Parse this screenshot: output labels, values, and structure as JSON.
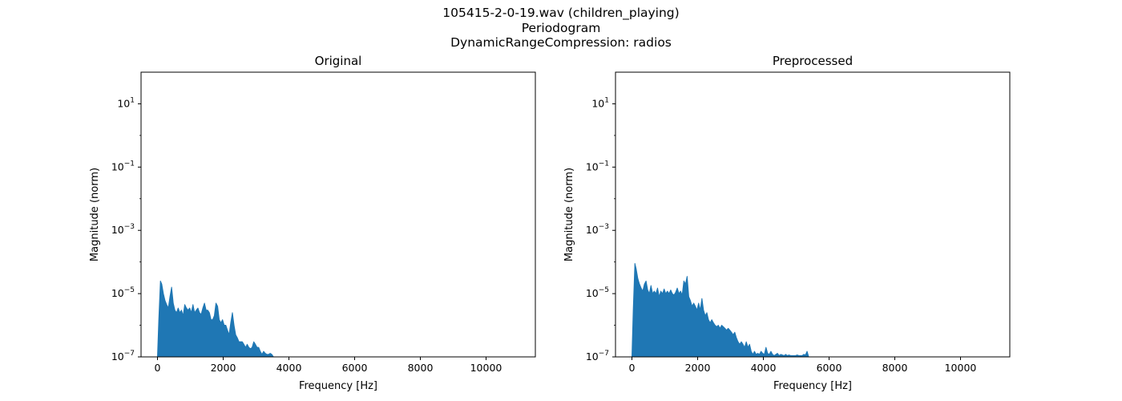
{
  "figure": {
    "title_lines": [
      "105415-2-0-19.wav (children_playing)",
      "Periodogram",
      "DynamicRangeCompression: radios"
    ]
  },
  "chart_data": [
    {
      "type": "area",
      "title": "Original",
      "xlabel": "Frequency [Hz]",
      "ylabel": "Magnitude (norm)",
      "xlim": [
        -500,
        11500
      ],
      "xticks": [
        0,
        2000,
        4000,
        6000,
        8000,
        10000
      ],
      "yscale": "log",
      "ylim_exp": [
        -7,
        2
      ],
      "yticks_exp": [
        -7,
        -5,
        -3,
        -1,
        1
      ],
      "ytick_labels": [
        "10^-7",
        "10^-5",
        "10^-3",
        "10^-1",
        "10^1"
      ],
      "color": "#1f77b4",
      "baseline": 1e-07,
      "x": [
        0,
        40,
        90,
        130,
        180,
        230,
        280,
        330,
        380,
        430,
        480,
        530,
        580,
        630,
        680,
        730,
        780,
        830,
        880,
        930,
        980,
        1030,
        1080,
        1130,
        1180,
        1230,
        1280,
        1330,
        1380,
        1430,
        1480,
        1530,
        1580,
        1630,
        1680,
        1730,
        1780,
        1830,
        1880,
        1930,
        1980,
        2030,
        2080,
        2130,
        2180,
        2230,
        2280,
        2330,
        2380,
        2430,
        2480,
        2530,
        2580,
        2630,
        2680,
        2730,
        2780,
        2830,
        2880,
        2930,
        2980,
        3030,
        3080,
        3130,
        3180,
        3230,
        3280,
        3330,
        3380,
        3430,
        3480,
        3530
      ],
      "y": [
        1e-07,
        1.5e-06,
        2.5e-05,
        2e-05,
        1e-05,
        6e-06,
        4.5e-06,
        3.5e-06,
        8e-06,
        1.6e-05,
        5e-06,
        3e-06,
        2.5e-06,
        3.5e-06,
        2.5e-06,
        3e-06,
        2e-06,
        4.5e-06,
        3.5e-06,
        3e-06,
        3.5e-06,
        2.5e-06,
        4.5e-06,
        2.5e-06,
        3e-06,
        3.5e-06,
        2.5e-06,
        2.2e-06,
        3.5e-06,
        5e-06,
        3e-06,
        3e-06,
        2.5e-06,
        1.5e-06,
        1.5e-06,
        2e-06,
        5e-06,
        4e-06,
        1.5e-06,
        1.2e-06,
        1.5e-06,
        1e-06,
        1e-06,
        7e-07,
        5e-07,
        1.2e-06,
        2.5e-06,
        1e-06,
        5e-07,
        4e-07,
        3e-07,
        3e-07,
        3e-07,
        2.5e-07,
        2e-07,
        2.5e-07,
        2e-07,
        1.8e-07,
        2e-07,
        3e-07,
        2.5e-07,
        2e-07,
        2e-07,
        1.5e-07,
        1.2e-07,
        1.5e-07,
        1.3e-07,
        1.2e-07,
        1.2e-07,
        1.3e-07,
        1.2e-07,
        1e-07
      ]
    },
    {
      "type": "area",
      "title": "Preprocessed",
      "xlabel": "Frequency [Hz]",
      "ylabel": "Magnitude (norm)",
      "xlim": [
        -500,
        11500
      ],
      "xticks": [
        0,
        2000,
        4000,
        6000,
        8000,
        10000
      ],
      "yscale": "log",
      "ylim_exp": [
        -7,
        2
      ],
      "yticks_exp": [
        -7,
        -5,
        -3,
        -1,
        1
      ],
      "ytick_labels": [
        "10^-7",
        "10^-5",
        "10^-3",
        "10^-1",
        "10^1"
      ],
      "color": "#1f77b4",
      "baseline": 1e-07,
      "x": [
        0,
        40,
        90,
        130,
        180,
        230,
        280,
        330,
        380,
        430,
        480,
        530,
        580,
        630,
        680,
        730,
        780,
        830,
        880,
        930,
        980,
        1030,
        1080,
        1130,
        1180,
        1230,
        1280,
        1330,
        1380,
        1430,
        1480,
        1530,
        1580,
        1630,
        1680,
        1730,
        1780,
        1830,
        1880,
        1930,
        1980,
        2030,
        2080,
        2130,
        2180,
        2230,
        2280,
        2330,
        2380,
        2430,
        2480,
        2530,
        2580,
        2630,
        2680,
        2730,
        2780,
        2830,
        2880,
        2930,
        2980,
        3030,
        3080,
        3130,
        3180,
        3230,
        3280,
        3330,
        3380,
        3430,
        3480,
        3530,
        3580,
        3630,
        3680,
        3730,
        3780,
        3830,
        3880,
        3930,
        3980,
        4030,
        4080,
        4130,
        4180,
        4230,
        4280,
        4330,
        4380,
        4430,
        4480,
        4530,
        4580,
        4630,
        4680,
        4730,
        4780,
        4830,
        4880,
        4930,
        4980,
        5030,
        5080,
        5130,
        5180,
        5230,
        5280,
        5330,
        5380
      ],
      "y": [
        1e-07,
        3e-06,
        9e-05,
        6e-05,
        3e-05,
        2e-05,
        1.5e-05,
        1.2e-05,
        2e-05,
        2.5e-05,
        1.3e-05,
        1e-05,
        1.8e-05,
        1e-05,
        1.2e-05,
        1e-05,
        1.5e-05,
        8e-06,
        1.2e-05,
        1e-05,
        1.4e-05,
        1e-05,
        1.2e-05,
        1e-05,
        1.3e-05,
        1e-05,
        9e-06,
        1.1e-05,
        1.5e-05,
        1e-05,
        1.2e-05,
        9e-06,
        2.5e-05,
        2e-05,
        3.5e-05,
        8e-06,
        6e-06,
        4e-06,
        5e-06,
        4e-06,
        3e-06,
        5e-06,
        3e-06,
        7e-06,
        3e-06,
        2e-06,
        2.5e-06,
        1.5e-06,
        1.2e-06,
        1.5e-06,
        1.2e-06,
        1e-06,
        9e-07,
        1e-06,
        8e-07,
        1e-06,
        9e-07,
        8e-07,
        7e-07,
        8e-07,
        7e-07,
        6e-07,
        5e-07,
        6e-07,
        4e-07,
        3e-07,
        2.5e-07,
        3e-07,
        2.5e-07,
        2e-07,
        3e-07,
        2e-07,
        2.5e-07,
        1.5e-07,
        1.2e-07,
        1.5e-07,
        1.2e-07,
        1.3e-07,
        1.2e-07,
        1.5e-07,
        1.3e-07,
        1.2e-07,
        2e-07,
        1.3e-07,
        1.2e-07,
        1.5e-07,
        1.2e-07,
        1.1e-07,
        1.2e-07,
        1.3e-07,
        1.1e-07,
        1.2e-07,
        1.15e-07,
        1.1e-07,
        1.2e-07,
        1.1e-07,
        1.15e-07,
        1.1e-07,
        1.1e-07,
        1.1e-07,
        1.1e-07,
        1.15e-07,
        1.1e-07,
        1.1e-07,
        1.1e-07,
        1.2e-07,
        1.15e-07,
        1.5e-07,
        1e-07
      ]
    }
  ]
}
